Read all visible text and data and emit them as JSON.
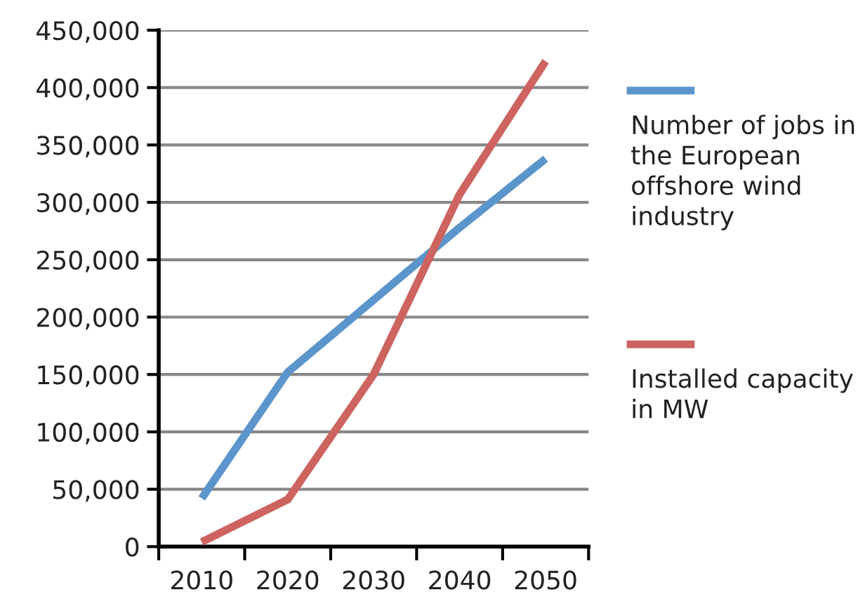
{
  "chart_data": {
    "type": "line",
    "categories": [
      "2010",
      "2020",
      "2030",
      "2040",
      "2050"
    ],
    "series": [
      {
        "name": "Number of jobs in the European offshore wind industry",
        "color": "#5b95cc",
        "values": [
          42000,
          152000,
          215000,
          278000,
          338000
        ]
      },
      {
        "name": "Installed capacity in MW",
        "color": "#cd6460",
        "values": [
          4000,
          41000,
          150000,
          307000,
          423000
        ]
      }
    ],
    "ylim": [
      0,
      450000
    ],
    "yticks": [
      {
        "value": 0,
        "label": "0"
      },
      {
        "value": 50000,
        "label": "50,000"
      },
      {
        "value": 100000,
        "label": "100,000"
      },
      {
        "value": 150000,
        "label": "150,000"
      },
      {
        "value": 200000,
        "label": "200,000"
      },
      {
        "value": 250000,
        "label": "250,000"
      },
      {
        "value": 300000,
        "label": "300,000"
      },
      {
        "value": 350000,
        "label": "350,000"
      },
      {
        "value": 400000,
        "label": "400,000"
      },
      {
        "value": 450000,
        "label": "450,000"
      }
    ],
    "grid": "y",
    "legend": "right",
    "line_style": "solid",
    "marker": "none"
  }
}
